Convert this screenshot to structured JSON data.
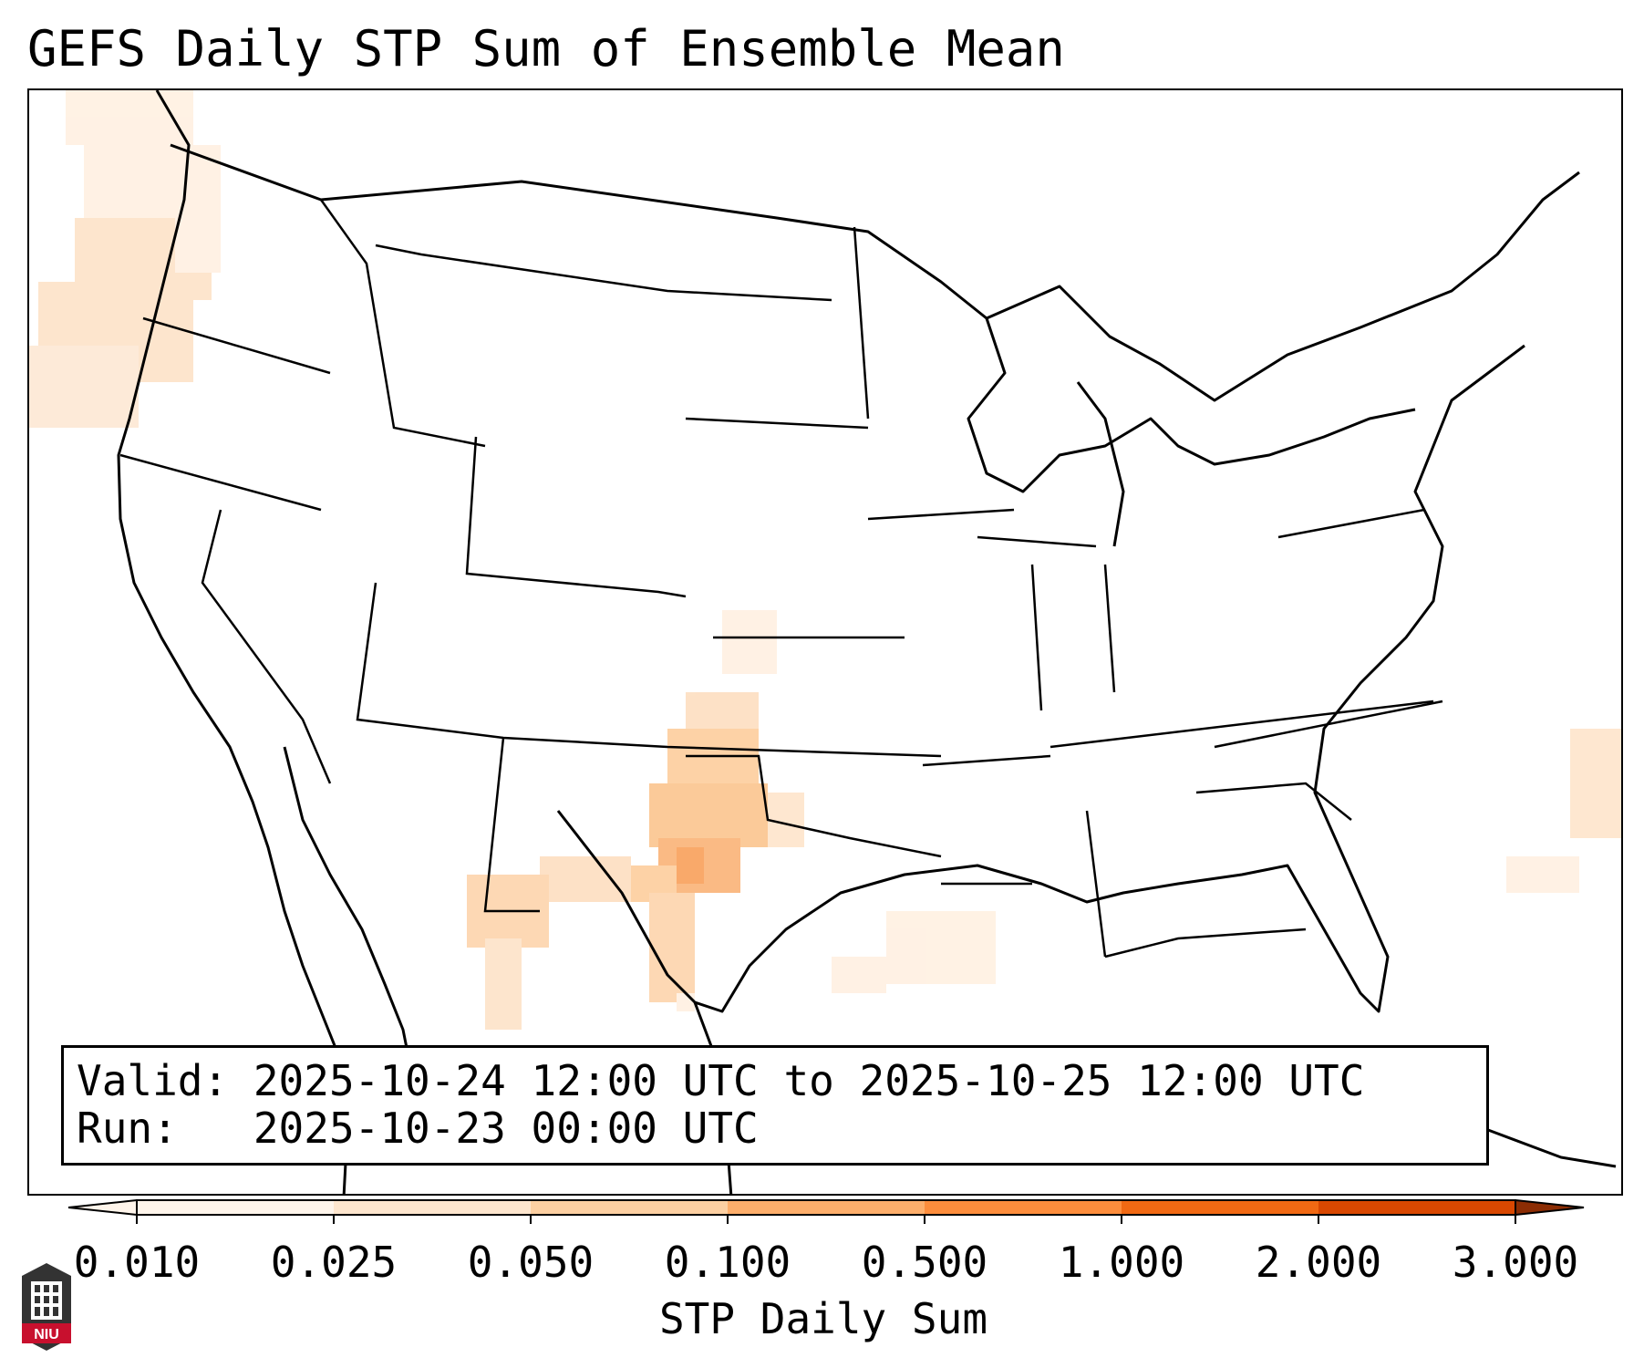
{
  "title": "GEFS Daily STP Sum of Ensemble Mean",
  "info": {
    "valid_line": "Valid: 2025-10-24 12:00 UTC to 2025-10-25 12:00 UTC",
    "run_line": "Run:   2025-10-23 00:00 UTC"
  },
  "colorbar": {
    "label": "STP Daily Sum",
    "ticks": [
      "0.010",
      "0.025",
      "0.050",
      "0.100",
      "0.500",
      "1.000",
      "2.000",
      "3.000"
    ],
    "colors": [
      "#fff5eb",
      "#fee6ce",
      "#fdd0a2",
      "#fdae6b",
      "#fd8d3c",
      "#f16913",
      "#d94801",
      "#8c2d04"
    ]
  },
  "logo": {
    "text": "NIU",
    "colors": {
      "shield": "#333333",
      "band": "#c8102e"
    }
  }
}
